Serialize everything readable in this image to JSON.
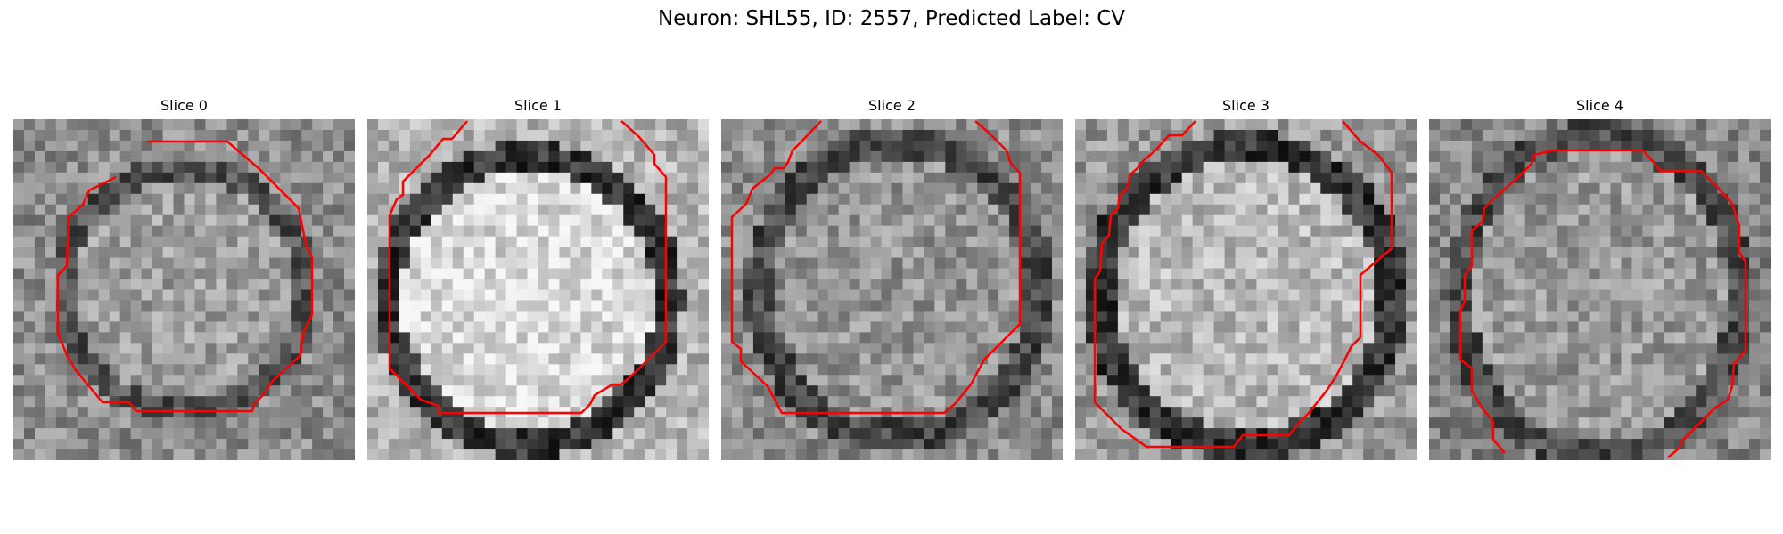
{
  "figure": {
    "title": "Neuron: SHL55, ID: 2557, Predicted Label: CV"
  },
  "contour_color": "#ff0000",
  "slices": [
    {
      "label": "Slice 0"
    },
    {
      "label": "Slice 1"
    },
    {
      "label": "Slice 2"
    },
    {
      "label": "Slice 3"
    },
    {
      "label": "Slice 4"
    }
  ]
}
